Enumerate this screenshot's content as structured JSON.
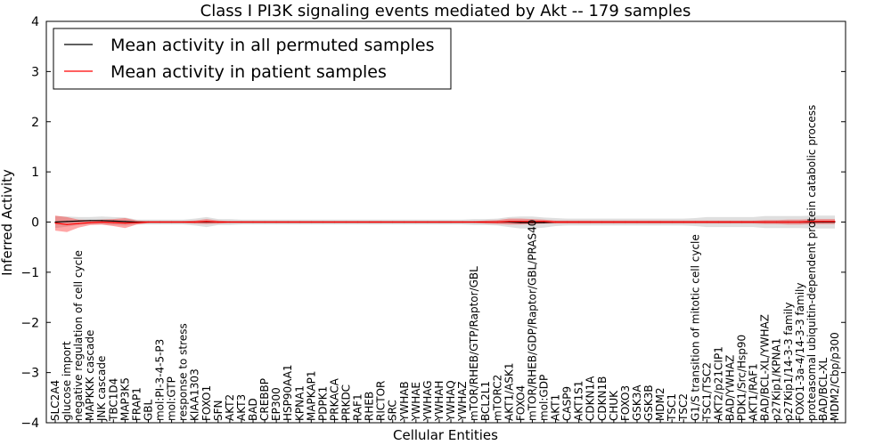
{
  "chart_data": {
    "type": "line",
    "title": "Class I PI3K signaling events mediated by Akt -- 179 samples",
    "xlabel": "Cellular Entities",
    "ylabel": "Inferred Activity",
    "ylim": [
      -4,
      4
    ],
    "yticks": [
      -4,
      -3,
      -2,
      -1,
      0,
      1,
      2,
      3,
      4
    ],
    "legend_position": "top-left",
    "categories": [
      "SLC2A4",
      "glucose import",
      "negative regulation of cell cycle",
      "MAPKKK cascade",
      "JNK cascade",
      "TBC1D4",
      "MAP3K5",
      "FRAP1",
      "GBL",
      "mol:PI-3-4-5-P3",
      "mol:GTP",
      "response to stress",
      "KIAA1303",
      "FOXO1",
      "SFN",
      "AKT2",
      "AKT3",
      "BAD",
      "CREBBP",
      "EP300",
      "HSP90AA1",
      "KPNA1",
      "MAPKAP1",
      "PDPK1",
      "PRKACA",
      "PRKDC",
      "RAF1",
      "RHEB",
      "RICTOR",
      "SRC",
      "YWHAB",
      "YWHAE",
      "YWHAG",
      "YWHAH",
      "YWHAQ",
      "YWHAZ",
      "mTOR/RHEB/GTP/Raptor/GBL",
      "BCL2L1",
      "mTORC2",
      "AKT1/ASK1",
      "FOXO4",
      "mTOR/RHEB/GDP/Raptor/GBL/PRAS40",
      "mol:GDP",
      "AKT1",
      "CASP9",
      "AKT1S1",
      "CDKN1A",
      "CDKN1B",
      "CHUK",
      "FOXO3",
      "GSK3A",
      "GSK3B",
      "MDM2",
      "TSC1",
      "TSC2",
      "G1/S transition of mitotic cell cycle",
      "TSC1/TSC2",
      "AKT2/p21CIP1",
      "BAD/YWHAZ",
      "PDK1/Src/Hsp90",
      "AKT1/RAF1",
      "BAD/BCL-XL/YWHAZ",
      "p27Kip1/KPNA1",
      "p27Kip1/14-3-3 family",
      "FOXO1-3a-4/14-3-3 family",
      "proteasomal ubiquitin-dependent protein catabolic process",
      "BAD/BCL-XL",
      "MDM2/Cbp/p300"
    ],
    "series": [
      {
        "name": "Mean activity in all permuted samples",
        "color": "#000000",
        "values": [
          0.0,
          0.01,
          0.02,
          0.03,
          0.03,
          0.02,
          0.01,
          0.0,
          0.0,
          0.0,
          0.0,
          0.0,
          0.0,
          0.0,
          0.0,
          0.0,
          0.0,
          0.0,
          0.0,
          0.0,
          0.0,
          0.0,
          0.0,
          0.0,
          0.0,
          0.0,
          0.0,
          0.0,
          0.0,
          0.0,
          0.0,
          0.0,
          0.0,
          0.0,
          0.0,
          0.0,
          0.0,
          0.0,
          0.0,
          0.0,
          -0.01,
          -0.01,
          -0.01,
          0.0,
          0.0,
          0.0,
          0.0,
          0.0,
          0.0,
          0.0,
          0.0,
          0.0,
          0.0,
          0.0,
          0.0,
          0.0,
          0.0,
          0.0,
          0.0,
          0.0,
          0.0,
          0.0,
          0.0,
          0.0,
          0.0,
          0.0,
          0.0,
          0.0
        ],
        "band": [
          0.12,
          0.1,
          0.08,
          0.07,
          0.08,
          0.08,
          0.08,
          0.05,
          0.05,
          0.05,
          0.05,
          0.05,
          0.07,
          0.1,
          0.06,
          0.06,
          0.05,
          0.05,
          0.05,
          0.05,
          0.05,
          0.05,
          0.05,
          0.05,
          0.05,
          0.05,
          0.05,
          0.05,
          0.05,
          0.05,
          0.05,
          0.05,
          0.05,
          0.05,
          0.05,
          0.05,
          0.06,
          0.06,
          0.07,
          0.1,
          0.12,
          0.12,
          0.1,
          0.08,
          0.07,
          0.07,
          0.07,
          0.07,
          0.07,
          0.07,
          0.07,
          0.07,
          0.07,
          0.07,
          0.07,
          0.08,
          0.1,
          0.1,
          0.1,
          0.1,
          0.1,
          0.12,
          0.12,
          0.12,
          0.12,
          0.13,
          0.13,
          0.13
        ]
      },
      {
        "name": "Mean activity in patient samples",
        "color": "#ff0000",
        "values": [
          -0.02,
          -0.05,
          -0.03,
          -0.01,
          0.0,
          -0.01,
          -0.02,
          -0.01,
          0.0,
          0.0,
          0.0,
          0.0,
          0.0,
          0.01,
          0.0,
          0.0,
          0.0,
          0.0,
          0.0,
          0.0,
          0.0,
          0.0,
          0.0,
          0.0,
          0.0,
          0.0,
          0.0,
          0.0,
          0.0,
          0.0,
          0.0,
          0.0,
          0.0,
          0.0,
          0.0,
          0.0,
          0.0,
          0.0,
          0.0,
          0.01,
          0.01,
          0.01,
          0.01,
          0.0,
          0.0,
          0.0,
          0.0,
          0.0,
          0.0,
          0.0,
          0.0,
          0.0,
          0.0,
          0.0,
          0.0,
          0.0,
          0.0,
          0.0,
          0.0,
          0.0,
          0.0,
          0.0,
          0.0,
          0.0,
          0.0,
          0.01,
          0.01,
          0.01
        ],
        "band": [
          0.15,
          0.15,
          0.08,
          0.05,
          0.05,
          0.07,
          0.1,
          0.04,
          0.02,
          0.02,
          0.02,
          0.02,
          0.03,
          0.05,
          0.03,
          0.02,
          0.02,
          0.02,
          0.02,
          0.02,
          0.02,
          0.02,
          0.02,
          0.02,
          0.02,
          0.02,
          0.02,
          0.02,
          0.02,
          0.02,
          0.02,
          0.02,
          0.02,
          0.02,
          0.02,
          0.02,
          0.02,
          0.03,
          0.04,
          0.06,
          0.06,
          0.05,
          0.04,
          0.03,
          0.03,
          0.03,
          0.03,
          0.03,
          0.03,
          0.03,
          0.03,
          0.03,
          0.03,
          0.03,
          0.03,
          0.03,
          0.03,
          0.03,
          0.03,
          0.03,
          0.03,
          0.04,
          0.04,
          0.05,
          0.05,
          0.05,
          0.05,
          0.05
        ]
      }
    ]
  }
}
